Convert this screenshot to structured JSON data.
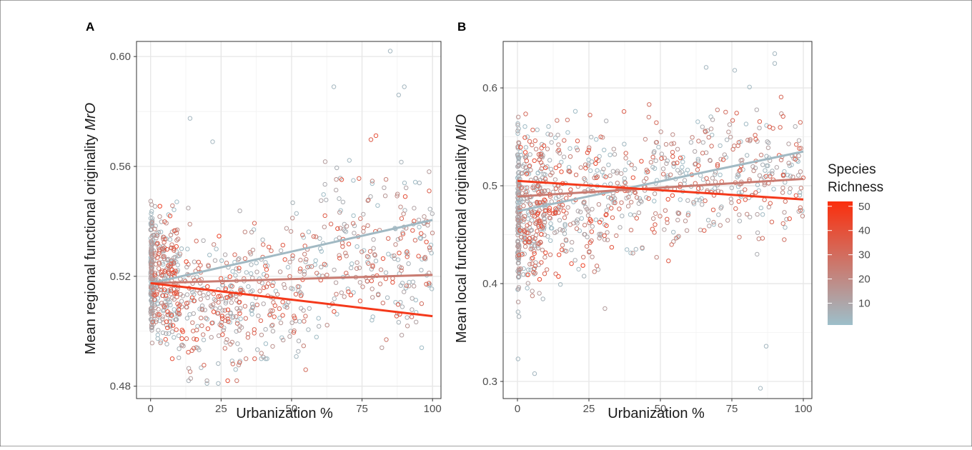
{
  "legend": {
    "title_line1": "Species",
    "title_line2": "Richness",
    "ticks": [
      10,
      20,
      30,
      40,
      50
    ],
    "range": [
      1,
      52
    ],
    "low_color": "#9dbfca",
    "high_color": "#fb2e0c"
  },
  "chart_data": [
    {
      "type": "scatter",
      "panel_label": "A",
      "xlabel": "Urbanization %",
      "ylabel_prefix": "Mean regional functional originality",
      "ylabel_symbol": "MrO",
      "xlim": [
        -5,
        103
      ],
      "ylim": [
        0.4755,
        0.6055
      ],
      "x_ticks": [
        0,
        25,
        50,
        75,
        100
      ],
      "y_ticks": [
        0.48,
        0.52,
        0.56,
        0.6
      ],
      "y_tick_labels": [
        "0.48",
        "0.52",
        "0.56",
        "0.60"
      ],
      "grid": true,
      "point_clusters": [
        {
          "x_min": 0,
          "x_max": 0.6,
          "y_min": 0.489,
          "y_max": 0.563,
          "y_center": 0.522,
          "count": 140,
          "richness_min": 2,
          "richness_max": 18
        },
        {
          "x_min": 0.5,
          "x_max": 10,
          "y_min": 0.49,
          "y_max": 0.563,
          "y_center": 0.519,
          "count": 260,
          "richness_min": 2,
          "richness_max": 45
        },
        {
          "x_min": 10,
          "x_max": 32,
          "y_min": 0.482,
          "y_max": 0.56,
          "y_center": 0.511,
          "count": 220,
          "richness_min": 2,
          "richness_max": 45
        },
        {
          "x_min": 32,
          "x_max": 60,
          "y_min": 0.49,
          "y_max": 0.57,
          "y_center": 0.516,
          "count": 170,
          "richness_min": 2,
          "richness_max": 40
        },
        {
          "x_min": 60,
          "x_max": 100,
          "y_min": 0.494,
          "y_max": 0.588,
          "y_center": 0.529,
          "count": 240,
          "richness_min": 2,
          "richness_max": 40
        }
      ],
      "outliers": [
        {
          "x": 85,
          "y": 0.602,
          "richness": 4
        },
        {
          "x": 14,
          "y": 0.5775,
          "richness": 4
        },
        {
          "x": 65,
          "y": 0.589,
          "richness": 4
        },
        {
          "x": 90,
          "y": 0.589,
          "richness": 4
        },
        {
          "x": 88,
          "y": 0.586,
          "richness": 4
        },
        {
          "x": 55,
          "y": 0.486,
          "richness": 30
        },
        {
          "x": 24,
          "y": 0.481,
          "richness": 4
        },
        {
          "x": 20,
          "y": 0.481,
          "richness": 4
        },
        {
          "x": 22,
          "y": 0.569,
          "richness": 4
        }
      ],
      "trend_lines": [
        {
          "richness": 3,
          "x": [
            0,
            100
          ],
          "y": [
            0.5175,
            0.5405
          ]
        },
        {
          "richness": 25,
          "x": [
            0,
            100
          ],
          "y": [
            0.5175,
            0.5205
          ]
        },
        {
          "richness": 48,
          "x": [
            0,
            100
          ],
          "y": [
            0.5175,
            0.5055
          ]
        }
      ]
    },
    {
      "type": "scatter",
      "panel_label": "B",
      "xlabel": "Urbanization %",
      "ylabel_prefix": "Mean local functional originality",
      "ylabel_symbol": "MlO",
      "xlim": [
        -5,
        103
      ],
      "ylim": [
        0.2825,
        0.6475
      ],
      "x_ticks": [
        0,
        25,
        50,
        75,
        100
      ],
      "y_ticks": [
        0.3,
        0.4,
        0.5,
        0.6
      ],
      "y_tick_labels": [
        "0.3",
        "0.4",
        "0.5",
        "0.6"
      ],
      "grid": true,
      "point_clusters": [
        {
          "x_min": 0,
          "x_max": 0.6,
          "y_min": 0.325,
          "y_max": 0.585,
          "y_center": 0.475,
          "count": 140,
          "richness_min": 2,
          "richness_max": 18
        },
        {
          "x_min": 0.5,
          "x_max": 10,
          "y_min": 0.345,
          "y_max": 0.59,
          "y_center": 0.478,
          "count": 260,
          "richness_min": 2,
          "richness_max": 45
        },
        {
          "x_min": 10,
          "x_max": 32,
          "y_min": 0.355,
          "y_max": 0.585,
          "y_center": 0.485,
          "count": 220,
          "richness_min": 2,
          "richness_max": 45
        },
        {
          "x_min": 32,
          "x_max": 60,
          "y_min": 0.385,
          "y_max": 0.59,
          "y_center": 0.495,
          "count": 170,
          "richness_min": 2,
          "richness_max": 40
        },
        {
          "x_min": 60,
          "x_max": 100,
          "y_min": 0.42,
          "y_max": 0.62,
          "y_center": 0.515,
          "count": 240,
          "richness_min": 2,
          "richness_max": 40
        }
      ],
      "outliers": [
        {
          "x": 6,
          "y": 0.308,
          "richness": 4
        },
        {
          "x": 85,
          "y": 0.293,
          "richness": 4
        },
        {
          "x": 87,
          "y": 0.336,
          "richness": 4
        },
        {
          "x": 90,
          "y": 0.635,
          "richness": 4
        },
        {
          "x": 90,
          "y": 0.625,
          "richness": 4
        },
        {
          "x": 76,
          "y": 0.618,
          "richness": 4
        },
        {
          "x": 66,
          "y": 0.621,
          "richness": 4
        },
        {
          "x": 0.2,
          "y": 0.323,
          "richness": 4
        }
      ],
      "trend_lines": [
        {
          "richness": 3,
          "x": [
            0,
            100
          ],
          "y": [
            0.474,
            0.535
          ]
        },
        {
          "richness": 25,
          "x": [
            0,
            100
          ],
          "y": [
            0.489,
            0.507
          ]
        },
        {
          "richness": 48,
          "x": [
            0,
            100
          ],
          "y": [
            0.505,
            0.486
          ]
        }
      ]
    }
  ]
}
